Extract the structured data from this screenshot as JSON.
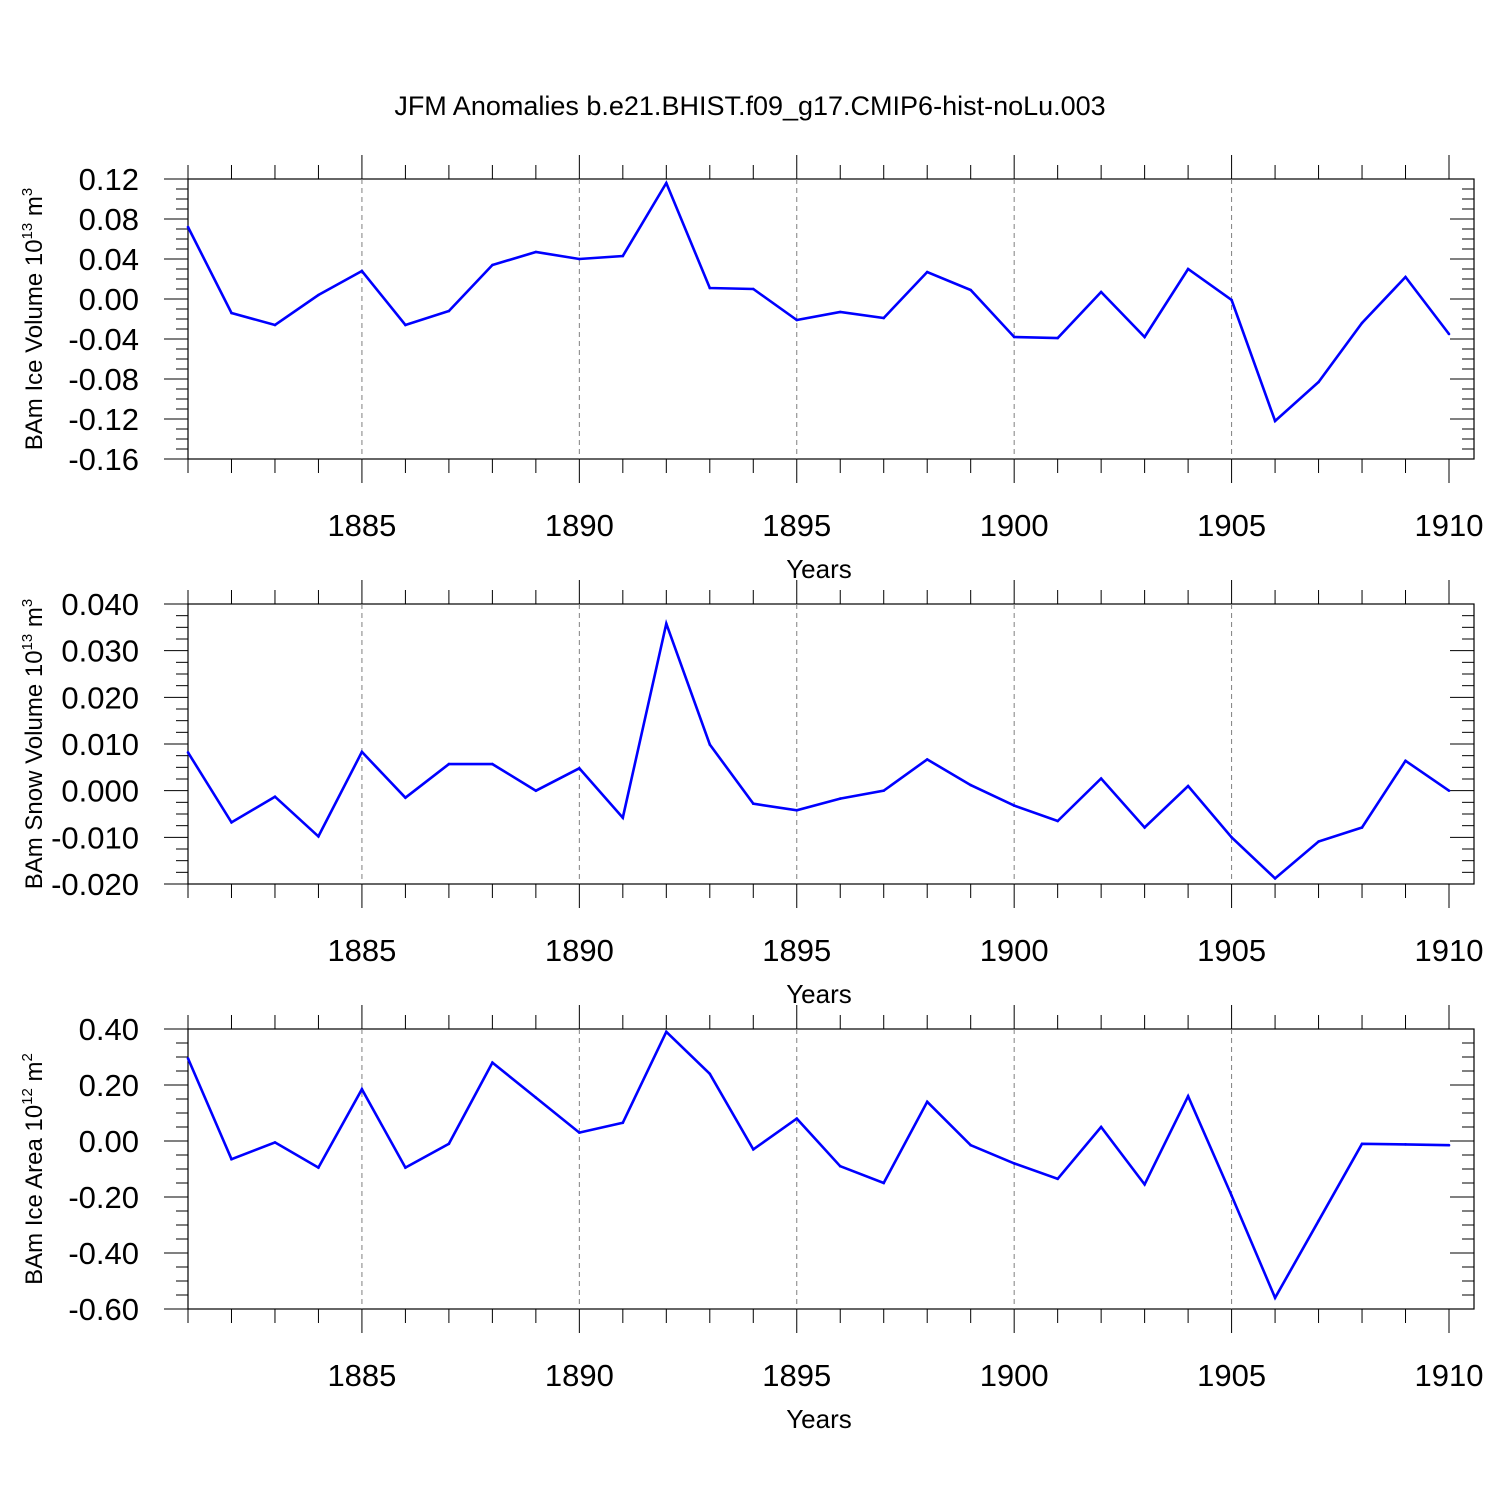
{
  "title": "JFM Anomalies b.e21.BHIST.f09_g17.CMIP6-hist-noLu.003",
  "colors": {
    "line": "#0000ff",
    "axis": "#000000",
    "grid": "#808080",
    "background": "#ffffff"
  },
  "chart_data": [
    {
      "type": "line",
      "title": "JFM Anomalies b.e21.BHIST.f09_g17.CMIP6-hist-noLu.003",
      "xlabel": "Years",
      "ylabel": {
        "text": "BAm Ice Volume 10",
        "exp": "13",
        "unit": " m",
        "unit_exp": "3"
      },
      "xlim": [
        1881,
        1910
      ],
      "ylim": [
        -0.16,
        0.12
      ],
      "x_ticks": [
        "1885",
        "1890",
        "1895",
        "1900",
        "1905",
        "1910"
      ],
      "y_ticks": [
        "0.12",
        "0.08",
        "0.04",
        "0.00",
        "-0.04",
        "-0.08",
        "-0.12",
        "-0.16"
      ],
      "vertical_grid": "dashed at major x ticks",
      "x": [
        1881,
        1882,
        1883,
        1884,
        1885,
        1886,
        1887,
        1888,
        1889,
        1890,
        1891,
        1892,
        1893,
        1894,
        1895,
        1896,
        1897,
        1898,
        1899,
        1900,
        1901,
        1902,
        1903,
        1904,
        1905,
        1906,
        1907,
        1908,
        1909,
        1910
      ],
      "series": [
        {
          "values": [
            0.072,
            -0.014,
            -0.026,
            0.004,
            0.028,
            -0.026,
            -0.012,
            0.034,
            0.047,
            0.04,
            0.043,
            0.116,
            0.011,
            0.01,
            -0.021,
            -0.013,
            -0.019,
            0.027,
            0.009,
            -0.038,
            -0.039,
            0.007,
            -0.038,
            0.03,
            -0.001,
            -0.122,
            -0.083,
            -0.024,
            0.022,
            -0.035
          ]
        }
      ]
    },
    {
      "type": "line",
      "xlabel": "Years",
      "ylabel": {
        "text": "BAm Snow Volume 10",
        "exp": "13",
        "unit": " m",
        "unit_exp": "3"
      },
      "xlim": [
        1881,
        1910
      ],
      "ylim": [
        -0.02,
        0.04
      ],
      "x_ticks": [
        "1885",
        "1890",
        "1895",
        "1900",
        "1905",
        "1910"
      ],
      "y_ticks": [
        "0.040",
        "0.030",
        "0.020",
        "0.010",
        "0.000",
        "-0.010",
        "-0.020"
      ],
      "vertical_grid": "dashed at major x ticks",
      "x": [
        1881,
        1882,
        1883,
        1884,
        1885,
        1886,
        1887,
        1888,
        1889,
        1890,
        1891,
        1892,
        1893,
        1894,
        1895,
        1896,
        1897,
        1898,
        1899,
        1900,
        1901,
        1902,
        1903,
        1904,
        1905,
        1906,
        1907,
        1908,
        1909,
        1910
      ],
      "series": [
        {
          "values": [
            0.0082,
            -0.0068,
            -0.0013,
            -0.0098,
            0.0083,
            -0.0015,
            0.0057,
            0.0057,
            0.0,
            0.0048,
            -0.0058,
            0.0358,
            0.0099,
            -0.0028,
            -0.0042,
            -0.0017,
            0.0,
            0.0067,
            0.0012,
            -0.0032,
            -0.0065,
            0.0026,
            -0.0079,
            0.001,
            -0.01,
            -0.0188,
            -0.0109,
            -0.0079,
            0.0064,
            0.0
          ]
        }
      ]
    },
    {
      "type": "line",
      "xlabel": "Years",
      "ylabel": {
        "text": "BAm Ice Area 10",
        "exp": "12",
        "unit": " m",
        "unit_exp": "2"
      },
      "xlim": [
        1881,
        1910
      ],
      "ylim": [
        -0.6,
        0.4
      ],
      "x_ticks": [
        "1885",
        "1890",
        "1895",
        "1900",
        "1905",
        "1910"
      ],
      "y_ticks": [
        "0.40",
        "0.20",
        "0.00",
        "-0.20",
        "-0.40",
        "-0.60"
      ],
      "vertical_grid": "dashed at major x ticks",
      "x": [
        1881,
        1882,
        1883,
        1884,
        1885,
        1886,
        1887,
        1888,
        1889,
        1890,
        1891,
        1892,
        1893,
        1894,
        1895,
        1896,
        1897,
        1898,
        1899,
        1900,
        1901,
        1902,
        1903,
        1904,
        1905,
        1906,
        1907,
        1908,
        1909,
        1910
      ],
      "series": [
        {
          "values": [
            0.295,
            -0.065,
            -0.005,
            -0.095,
            0.185,
            -0.095,
            -0.01,
            0.28,
            0.155,
            0.03,
            0.065,
            0.39,
            0.24,
            -0.03,
            0.08,
            -0.09,
            -0.15,
            0.14,
            -0.015,
            -0.08,
            -0.135,
            0.05,
            -0.155,
            0.16,
            -0.195,
            -0.56,
            -0.285,
            -0.01,
            -0.012,
            -0.015
          ]
        }
      ]
    }
  ]
}
